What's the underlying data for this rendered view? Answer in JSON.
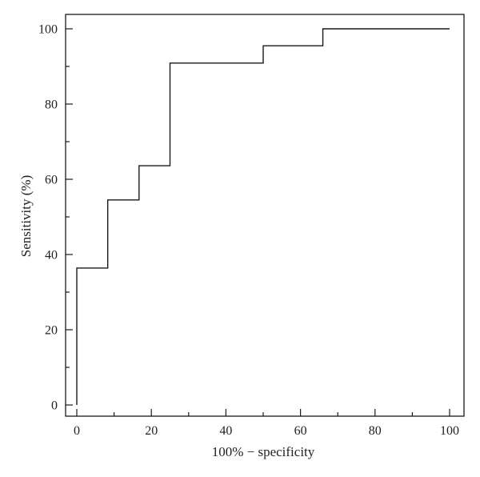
{
  "chart_data": {
    "type": "line",
    "title": "",
    "xlabel": "100% − specificity",
    "ylabel": "Sensitivity (%)",
    "xlim": [
      0,
      100
    ],
    "ylim": [
      0,
      100
    ],
    "x_ticks": [
      0,
      20,
      40,
      60,
      80,
      100
    ],
    "y_ticks": [
      0,
      20,
      40,
      60,
      80,
      100
    ],
    "x_tick_labels": [
      "0",
      "20",
      "40",
      "60",
      "80",
      "100"
    ],
    "y_tick_labels": [
      "0",
      "20",
      "40",
      "60",
      "80",
      "100"
    ],
    "grid": false,
    "legend": "none",
    "series": [
      {
        "line_style": "step",
        "color": "#1a1a1a",
        "x": [
          0,
          0,
          8.3,
          8.3,
          16.7,
          16.7,
          25,
          25,
          50,
          50,
          66,
          66,
          100
        ],
        "y": [
          0,
          36.4,
          36.4,
          54.5,
          54.5,
          63.6,
          63.6,
          90.9,
          90.9,
          95.5,
          95.5,
          100,
          100
        ]
      }
    ]
  }
}
